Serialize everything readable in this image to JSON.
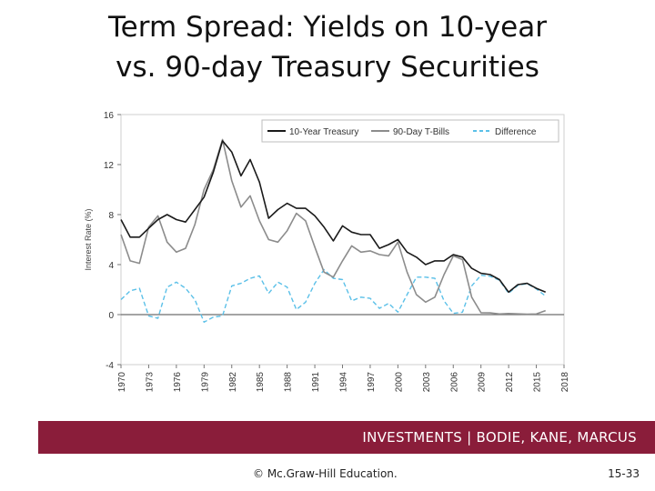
{
  "slide": {
    "title_line1": "Term Spread: Yields on 10-year",
    "title_line2": "vs. 90-day Treasury Securities",
    "banner": "INVESTMENTS | BODIE, KANE, MARCUS",
    "copyright": "© Mc.Graw-Hill Education.",
    "page_number": "15-33"
  },
  "colors": {
    "banner": "#8a1d3a",
    "ten_year": "#1a1a1a",
    "tbill": "#8c8c8c",
    "difference": "#5bc0e8"
  },
  "chart_data": {
    "type": "line",
    "title": "",
    "xlabel": "",
    "ylabel": "Interest Rate (%)",
    "xlim": [
      1970,
      2018
    ],
    "ylim": [
      -4,
      16
    ],
    "x_ticks": [
      "1970",
      "1973",
      "1976",
      "1979",
      "1982",
      "1985",
      "1988",
      "1991",
      "1994",
      "1997",
      "2000",
      "2003",
      "2006",
      "2009",
      "2012",
      "2015",
      "2018"
    ],
    "y_ticks": [
      "-4",
      "0",
      "4",
      "8",
      "12",
      "16"
    ],
    "legend_position": "top-right",
    "grid": false,
    "x": [
      1970,
      1971,
      1972,
      1973,
      1974,
      1975,
      1976,
      1977,
      1978,
      1979,
      1980,
      1981,
      1982,
      1983,
      1984,
      1985,
      1986,
      1987,
      1988,
      1989,
      1990,
      1991,
      1992,
      1993,
      1994,
      1995,
      1996,
      1997,
      1998,
      1999,
      2000,
      2001,
      2002,
      2003,
      2004,
      2005,
      2006,
      2007,
      2008,
      2009,
      2010,
      2011,
      2012,
      2013,
      2014,
      2015,
      2016
    ],
    "series": [
      {
        "name": "10-Year Treasury",
        "style": "solid",
        "values": [
          7.6,
          6.2,
          6.2,
          6.9,
          7.6,
          8.0,
          7.6,
          7.4,
          8.4,
          9.4,
          11.4,
          13.9,
          13.0,
          11.1,
          12.4,
          10.6,
          7.7,
          8.4,
          8.9,
          8.5,
          8.5,
          7.9,
          7.0,
          5.9,
          7.1,
          6.6,
          6.4,
          6.4,
          5.3,
          5.6,
          6.0,
          5.0,
          4.6,
          4.0,
          4.3,
          4.3,
          4.8,
          4.6,
          3.7,
          3.3,
          3.2,
          2.8,
          1.8,
          2.4,
          2.5,
          2.1,
          1.8
        ]
      },
      {
        "name": "90-Day T-Bills",
        "style": "solid",
        "values": [
          6.4,
          4.3,
          4.1,
          7.0,
          7.9,
          5.8,
          5.0,
          5.3,
          7.2,
          10.0,
          11.6,
          14.0,
          10.7,
          8.6,
          9.5,
          7.5,
          6.0,
          5.8,
          6.7,
          8.1,
          7.5,
          5.4,
          3.4,
          3.0,
          4.3,
          5.5,
          5.0,
          5.1,
          4.8,
          4.7,
          5.8,
          3.4,
          1.6,
          1.0,
          1.4,
          3.2,
          4.7,
          4.4,
          1.4,
          0.15,
          0.14,
          0.05,
          0.09,
          0.06,
          0.03,
          0.05,
          0.32
        ]
      },
      {
        "name": "Difference",
        "style": "dashed",
        "values": [
          1.2,
          1.9,
          2.1,
          -0.1,
          -0.3,
          2.2,
          2.6,
          2.1,
          1.2,
          -0.6,
          -0.2,
          -0.1,
          2.3,
          2.5,
          2.9,
          3.1,
          1.7,
          2.6,
          2.2,
          0.4,
          1.0,
          2.5,
          3.6,
          2.9,
          2.8,
          1.1,
          1.4,
          1.3,
          0.5,
          0.9,
          0.2,
          1.6,
          3.0,
          3.0,
          2.9,
          1.1,
          0.1,
          0.2,
          2.3,
          3.15,
          3.06,
          2.75,
          1.71,
          2.34,
          2.47,
          2.05,
          1.48
        ]
      }
    ]
  }
}
